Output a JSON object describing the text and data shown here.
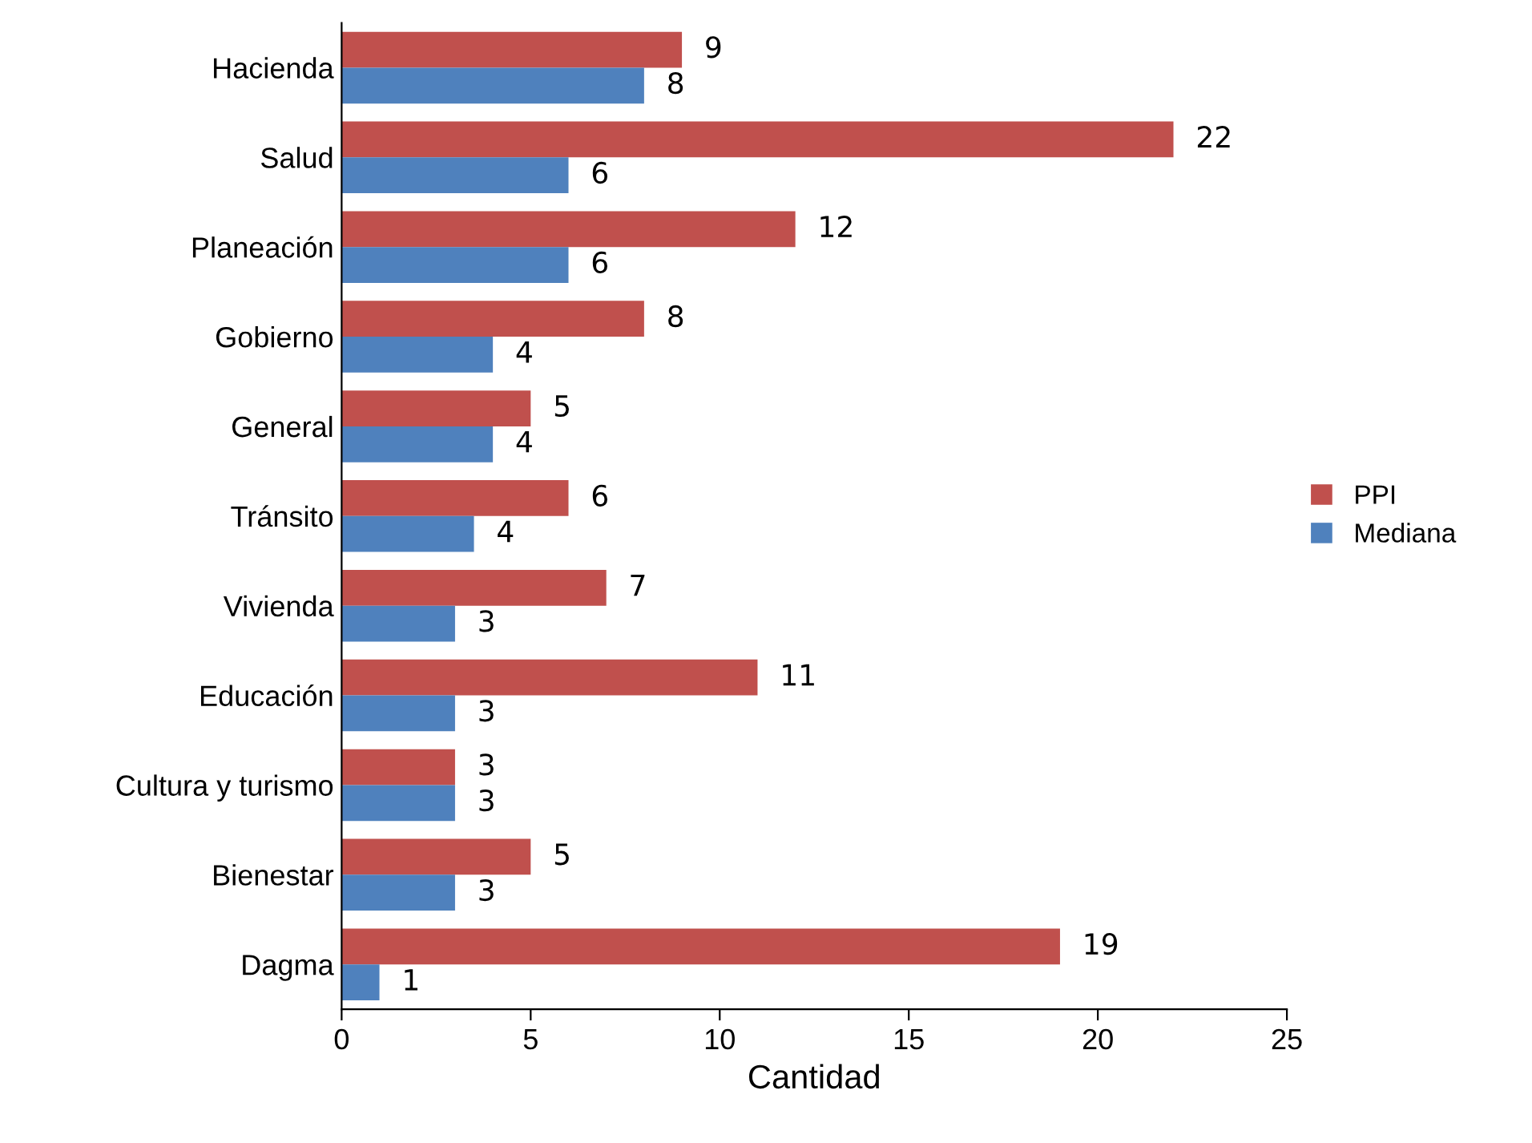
{
  "chart_data": {
    "type": "bar",
    "orientation": "horizontal",
    "xlabel": "Cantidad",
    "categories": [
      "Hacienda",
      "Salud",
      "Planeación",
      "Gobierno",
      "General",
      "Tránsito",
      "Vivienda",
      "Educación",
      "Cultura y turismo",
      "Bienestar",
      "Dagma"
    ],
    "series": [
      {
        "name": "PPI",
        "color": "#c0504d",
        "values": [
          9,
          22,
          12,
          8,
          5,
          6,
          7,
          11,
          3,
          5,
          19
        ],
        "value_labels": [
          "9",
          "22",
          "12",
          "8",
          "5",
          "6",
          "7",
          "11",
          "3",
          "5",
          "19"
        ]
      },
      {
        "name": "Mediana",
        "color": "#4f81bd",
        "values": [
          8,
          6,
          6,
          4,
          4,
          3.5,
          3,
          3,
          3,
          3,
          1
        ],
        "value_labels": [
          "8",
          "6",
          "6",
          "4",
          "4",
          "4",
          "3",
          "3",
          "3",
          "3",
          "1"
        ]
      }
    ],
    "xlim": [
      0,
      25
    ],
    "xticks": [
      0,
      5,
      10,
      15,
      20,
      25
    ],
    "grid": false,
    "legend": "right"
  }
}
